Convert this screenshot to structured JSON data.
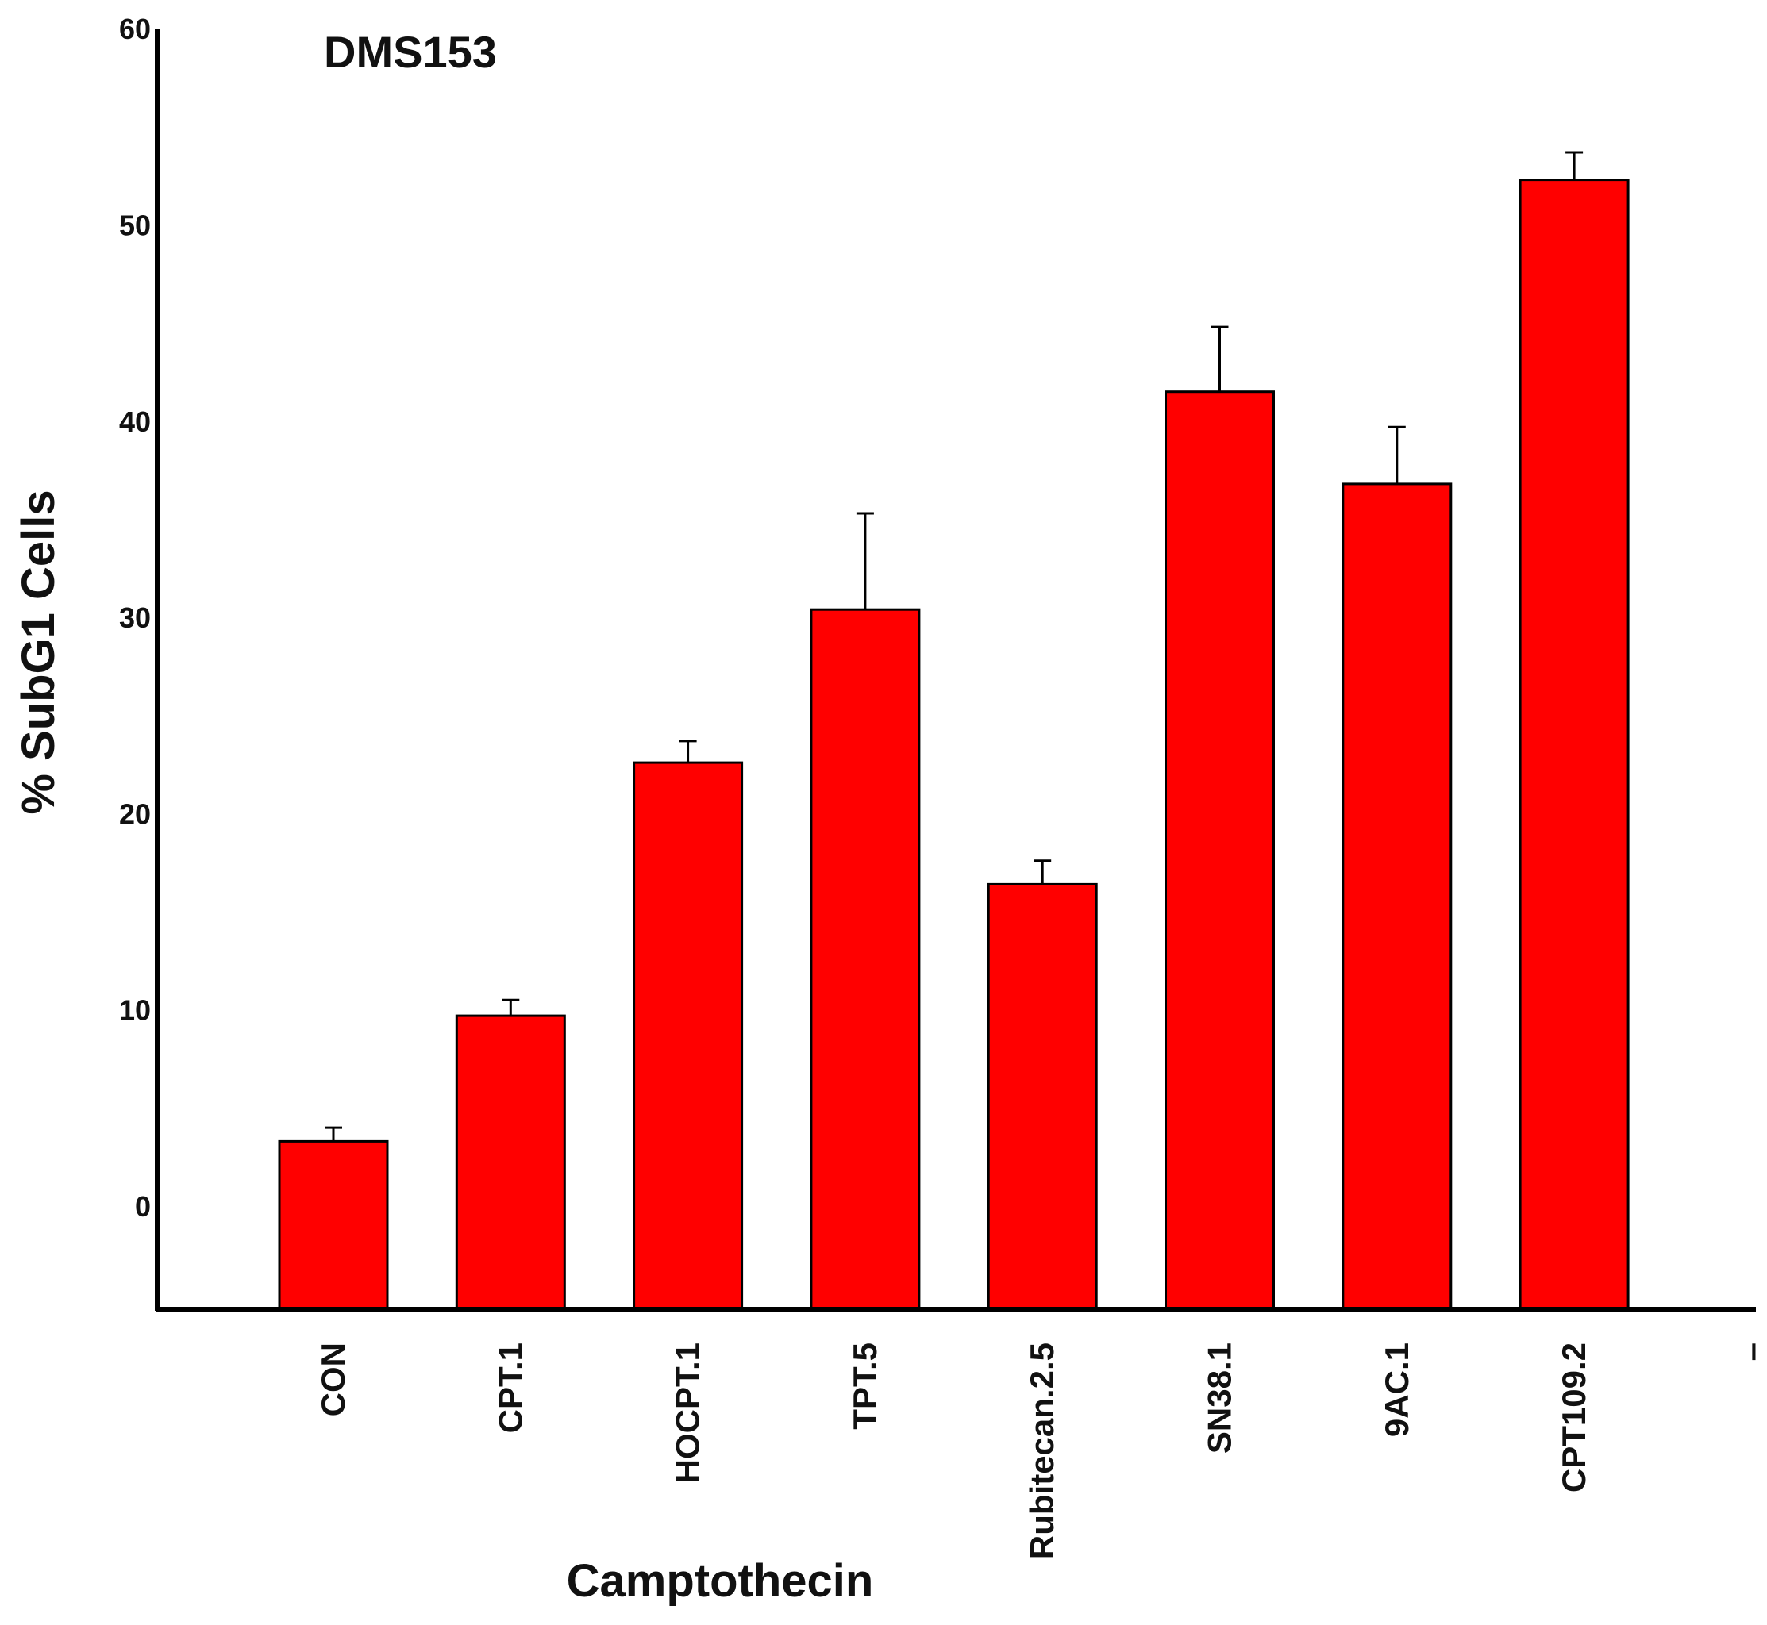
{
  "chart_data": {
    "type": "bar",
    "title": "DMS153",
    "xlabel": "Camptothecin",
    "ylabel": "% SubG1 Cells",
    "ylim": [
      -5,
      60
    ],
    "y_ticks": [
      0,
      10,
      20,
      30,
      40,
      50,
      60
    ],
    "categories": [
      "CON",
      "CPT.1",
      "HOCPT.1",
      "TPT.5",
      "Rubitecan.2.5",
      "SN38.1",
      "9AC.1",
      "CPT109.2"
    ],
    "series": [
      {
        "values": [
          3.3,
          9.7,
          22.6,
          30.4,
          16.4,
          41.5,
          36.8,
          52.3
        ],
        "errors": [
          0.7,
          0.8,
          1.1,
          4.9,
          1.2,
          3.3,
          2.9,
          1.4
        ]
      }
    ],
    "extra_x_tick_label": "–",
    "bar_color": "#ff0000",
    "bar_edge_color": "#000000",
    "grid": false,
    "legend": "none"
  }
}
